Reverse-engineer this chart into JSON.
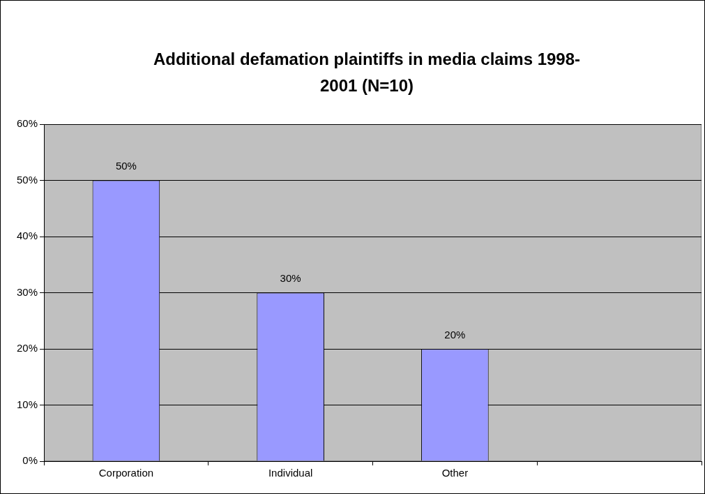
{
  "chart_data": {
    "type": "bar",
    "title": "Additional defamation plaintiffs in media claims 1998-2001 (N=10)",
    "categories": [
      "Corporation",
      "Individual",
      "Other",
      null
    ],
    "values": [
      50,
      30,
      20,
      null
    ],
    "color": "#9999ff",
    "value_labels": [
      "50%",
      "30%",
      "20%",
      null
    ],
    "ylim": [
      0,
      60
    ],
    "yticks": [
      {
        "value": 0,
        "label": "0%"
      },
      {
        "value": 10,
        "label": "10%"
      },
      {
        "value": 20,
        "label": "20%"
      },
      {
        "value": 30,
        "label": "30%"
      },
      {
        "value": 40,
        "label": "40%"
      },
      {
        "value": 50,
        "label": "50%"
      },
      {
        "value": 60,
        "label": "60%"
      }
    ],
    "grid": "y",
    "legend": false
  }
}
